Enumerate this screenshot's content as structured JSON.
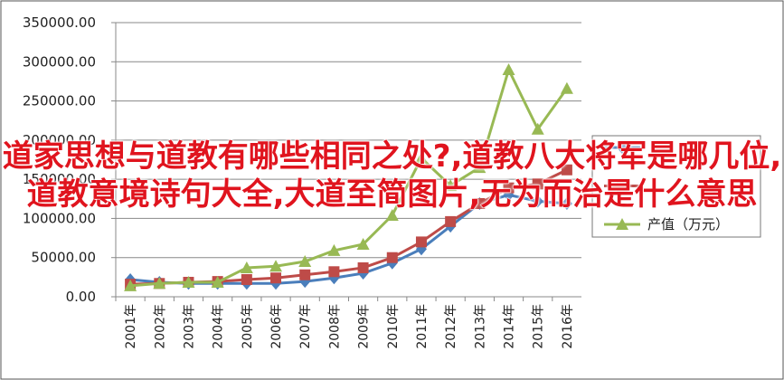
{
  "overlay_title": "道家思想与道教有哪些相同之处?,道教八大将军是哪几位,道教意境诗句大全,大道至简图片,无为而治是什么意思",
  "chart_data": {
    "type": "line",
    "categories": [
      "2001年",
      "2002年",
      "2003年",
      "2004年",
      "2005年",
      "2006年",
      "2007年",
      "2008年",
      "2009年",
      "2010年",
      "2011年",
      "2012年",
      "2013年",
      "2014年",
      "2015年",
      "2016年"
    ],
    "series": [
      {
        "color": "#4a7ebb",
        "marker": "diamond",
        "values": [
          22000,
          18500,
          17000,
          17000,
          17000,
          17000,
          19500,
          24000,
          30000,
          43000,
          61000,
          90000,
          119000,
          130000,
          122000,
          119000
        ]
      },
      {
        "color": "#be4b48",
        "marker": "square",
        "values": [
          16000,
          17000,
          18500,
          19500,
          22000,
          24000,
          28000,
          32000,
          37000,
          50000,
          70000,
          96000,
          119000,
          139000,
          144000,
          162000
        ]
      },
      {
        "name": "产值（万元）",
        "color": "#98b954",
        "marker": "triangle",
        "values": [
          14000,
          17000,
          18500,
          18500,
          37000,
          39000,
          45000,
          59000,
          67000,
          104000,
          177000,
          142000,
          165000,
          290000,
          214000,
          266000
        ]
      }
    ],
    "ylim": [
      0,
      350000
    ],
    "yticks": [
      {
        "value": 0,
        "label": "0.00"
      },
      {
        "value": 50000,
        "label": "50000.00"
      },
      {
        "value": 100000,
        "label": "100000.00"
      },
      {
        "value": 150000,
        "label": "150000.00"
      },
      {
        "value": 200000,
        "label": "200000.00"
      },
      {
        "value": 250000,
        "label": "250000.00"
      },
      {
        "value": 300000,
        "label": "300000.00"
      },
      {
        "value": 350000,
        "label": "350000.00"
      }
    ],
    "grid": true
  }
}
